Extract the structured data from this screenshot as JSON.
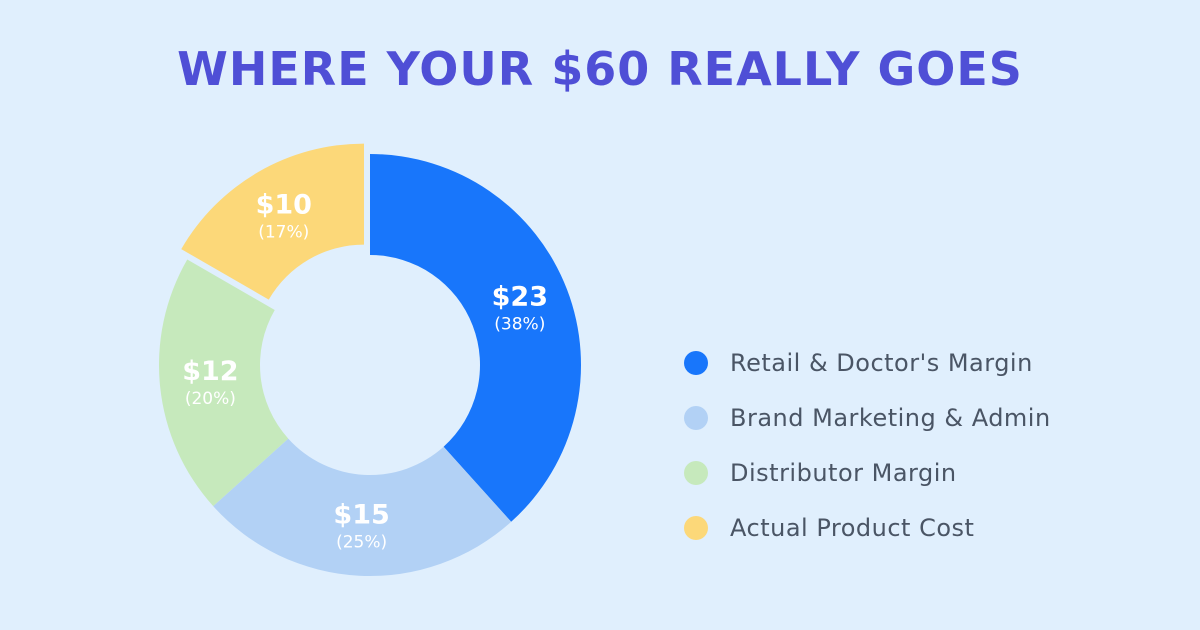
{
  "title": "WHERE YOUR $60 REALLY GOES",
  "chart_data": {
    "type": "pie",
    "donut": true,
    "title": "WHERE YOUR $60 REALLY GOES",
    "total": 60,
    "legend_position": "right",
    "slices": [
      {
        "name": "Retail & Doctor's Margin",
        "value": 23,
        "value_label": "$23",
        "percent_label": "(38%)",
        "color": "#1876fb"
      },
      {
        "name": "Brand Marketing & Admin",
        "value": 15,
        "value_label": "$15",
        "percent_label": "(25%)",
        "color": "#b2d1f5"
      },
      {
        "name": "Distributor Margin",
        "value": 12,
        "value_label": "$12",
        "percent_label": "(20%)",
        "color": "#c6e9bc"
      },
      {
        "name": "Actual Product Cost",
        "value": 10,
        "value_label": "$10",
        "percent_label": "(17%)",
        "color": "#fcd879",
        "exploded": true
      }
    ]
  }
}
